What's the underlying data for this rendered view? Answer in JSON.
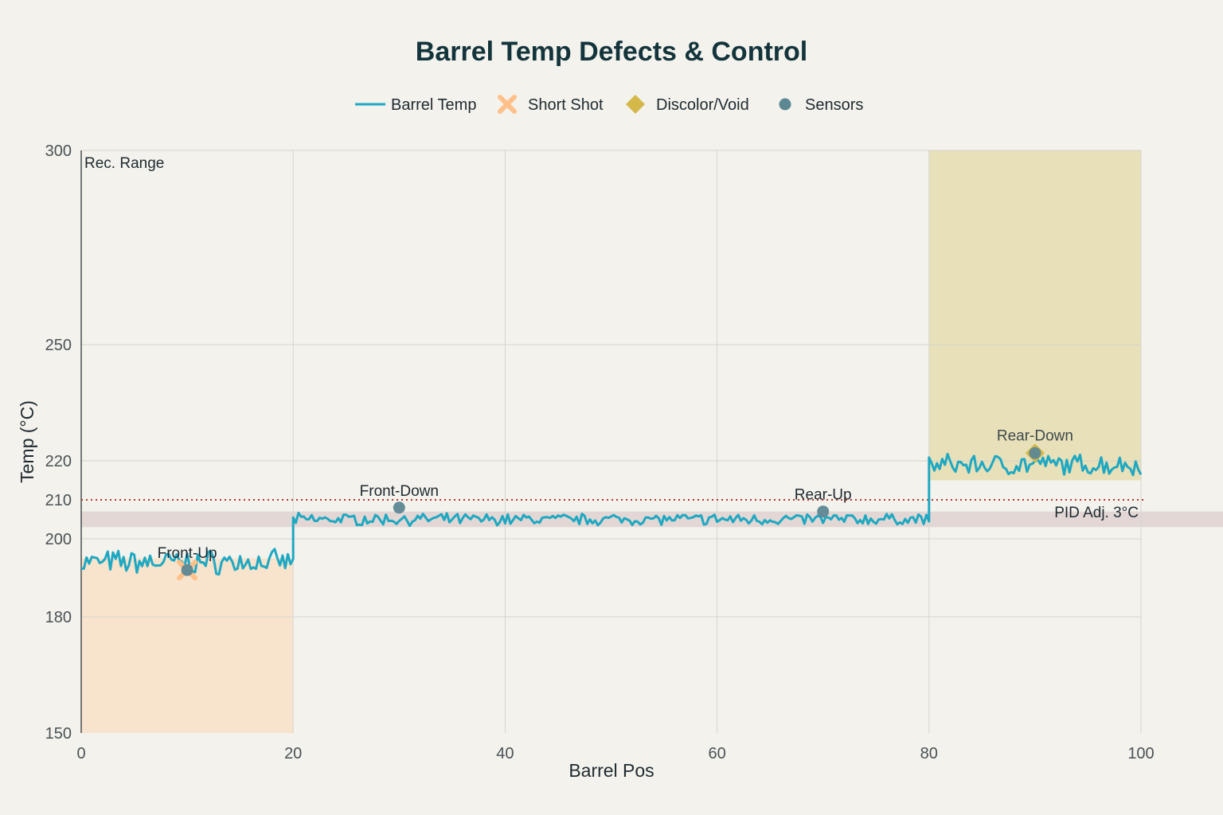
{
  "chart_data": {
    "type": "line",
    "title": "Barrel Temp Defects & Control",
    "xlabel": "Barrel Pos",
    "ylabel": "Temp (°C)",
    "xlim": [
      0,
      100
    ],
    "ylim": [
      150,
      300
    ],
    "x_ticks": [
      0,
      20,
      40,
      60,
      80,
      100
    ],
    "y_ticks": [
      150,
      180,
      200,
      210,
      220,
      250,
      300
    ],
    "grid": true,
    "legend": {
      "placement": "top-center",
      "items": [
        {
          "label": "Barrel Temp",
          "symbol": "line",
          "color": "#1fa8c2"
        },
        {
          "label": "Short Shot",
          "symbol": "x",
          "color": "#ffc08a"
        },
        {
          "label": "Discolor/Void",
          "symbol": "diamond",
          "color": "#d4b84a"
        },
        {
          "label": "Sensors",
          "symbol": "circle",
          "color": "#5d8793"
        }
      ]
    },
    "series": [
      {
        "name": "Barrel Temp",
        "color": "#1fa8c2",
        "segments": [
          {
            "x_range": [
              0,
              20
            ],
            "mean": 194,
            "noise": 2.5
          },
          {
            "x_range": [
              20,
              80
            ],
            "mean": 205,
            "noise": 1.2
          },
          {
            "x_range": [
              80,
              100
            ],
            "mean": 219,
            "noise": 2.2
          }
        ]
      }
    ],
    "regions": [
      {
        "name": "short-shot-zone",
        "x": [
          0,
          20
        ],
        "y": [
          150,
          195
        ],
        "color": "#f8e3cc"
      },
      {
        "name": "discolor-zone",
        "x": [
          80,
          100
        ],
        "y": [
          215,
          300
        ],
        "color": "#e8e0b8"
      },
      {
        "name": "rec-range",
        "y": [
          203,
          207
        ],
        "color": "#e2d7d4"
      }
    ],
    "reference_line": {
      "y": 210,
      "color": "#b5362b",
      "style": "dotted"
    },
    "sensors": [
      {
        "label": "Front-Up",
        "x": 10,
        "y": 192
      },
      {
        "label": "Front-Down",
        "x": 30,
        "y": 208
      },
      {
        "label": "Rear-Up",
        "x": 70,
        "y": 207
      },
      {
        "label": "Rear-Down",
        "x": 90,
        "y": 222
      }
    ],
    "defect_markers": [
      {
        "type": "Short Shot",
        "x": 10,
        "y": 192
      },
      {
        "type": "Discolor/Void",
        "x": 90,
        "y": 222
      }
    ],
    "annotations": {
      "rec_range": "Rec. Range",
      "pid": "PID Adj. 3°C"
    }
  }
}
